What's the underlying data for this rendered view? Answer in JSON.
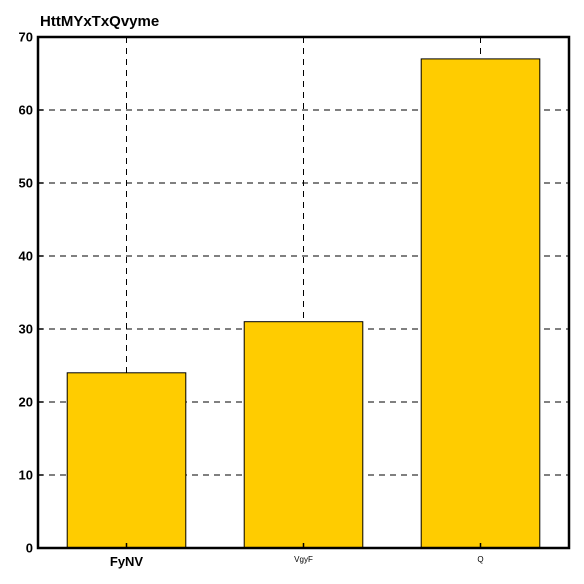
{
  "chart_data": {
    "type": "bar",
    "title": "HttMYxTxQvyme",
    "categories": [
      "FyNV",
      "VgyF",
      "Q"
    ],
    "values": [
      24,
      31,
      67
    ],
    "ylim": [
      0,
      70
    ],
    "yticks": [
      0,
      10,
      20,
      30,
      40,
      50,
      60,
      70
    ],
    "xlabel": "",
    "ylabel": "",
    "grid": true,
    "bar_color": "#ffcc00",
    "legend": "none"
  }
}
